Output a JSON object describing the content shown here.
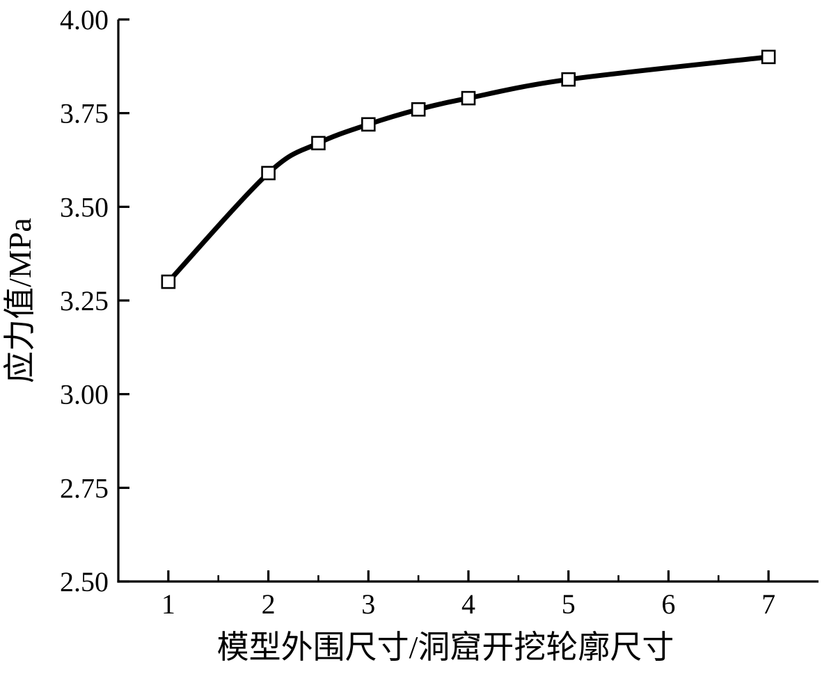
{
  "chart_data": {
    "type": "line",
    "title": "",
    "xlabel": "模型外围尺寸/洞窟开挖轮廓尺寸",
    "ylabel": "应力值/MPa",
    "x": [
      1,
      2,
      2.5,
      3,
      3.5,
      4,
      5,
      7
    ],
    "y": [
      3.3,
      3.59,
      3.67,
      3.72,
      3.76,
      3.79,
      3.84,
      3.9
    ],
    "xlim": [
      0.5,
      7.5
    ],
    "ylim": [
      2.5,
      4.0
    ],
    "xticks": [
      1,
      2,
      3,
      4,
      5,
      6,
      7
    ],
    "xtick_labels": [
      "1",
      "2",
      "3",
      "4",
      "5",
      "6",
      "7"
    ],
    "xticks_minor": [
      1.5,
      2.5,
      3.5,
      4.5,
      5.5,
      6.5
    ],
    "yticks": [
      2.5,
      2.75,
      3.0,
      3.25,
      3.5,
      3.75,
      4.0
    ],
    "ytick_labels": [
      "2.50",
      "2.75",
      "3.00",
      "3.25",
      "3.50",
      "3.75",
      "4.00"
    ],
    "line_color": "#000000",
    "marker": "open-square",
    "marker_fill": "#ffffff",
    "marker_stroke": "#000000",
    "grid": false,
    "legend": null
  }
}
